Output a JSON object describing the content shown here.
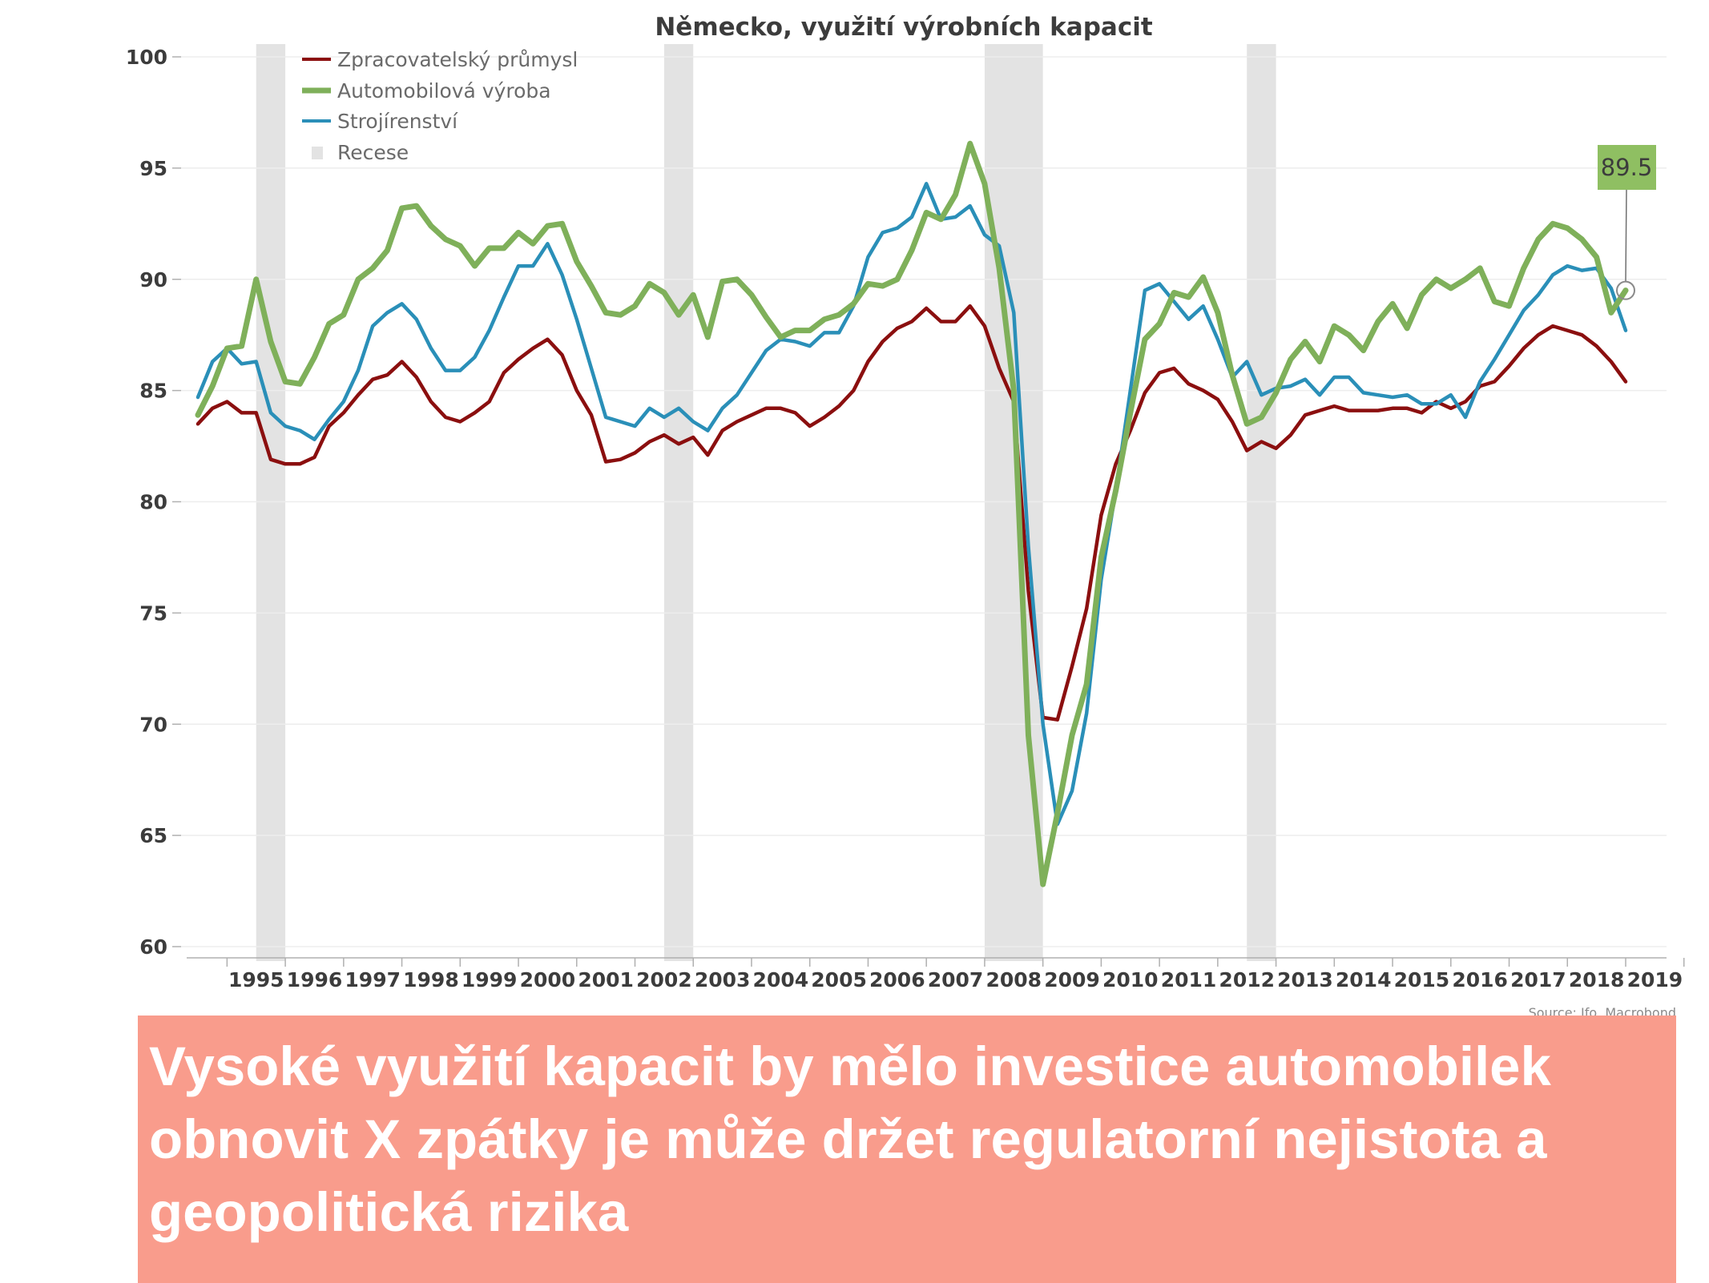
{
  "caption": {
    "text": "Vysoké využití kapacit by mělo investice automobilek obnovit X zpátky je může držet regulatorní nejistota a geopolitická rizika"
  },
  "chart_data": {
    "type": "line",
    "title": "Německo, využití výrobních kapacit",
    "source": "Source: Ifo, Macrobond",
    "x_start_year": 1994.5,
    "x_step": 0.25,
    "xlim": [
      1994.5,
      2019.55
    ],
    "ylim": [
      60,
      100
    ],
    "yticks": [
      60,
      65,
      70,
      75,
      80,
      85,
      90,
      95,
      100
    ],
    "xtick_labels": [
      "1995",
      "1996",
      "1997",
      "1998",
      "1999",
      "2000",
      "2001",
      "2002",
      "2003",
      "2004",
      "2005",
      "2006",
      "2007",
      "2008",
      "2009",
      "2010",
      "2011",
      "2012",
      "2013",
      "2014",
      "2015",
      "2016",
      "2017",
      "2018",
      "2019"
    ],
    "legend_position": "top-left",
    "grid": true,
    "recessions": [
      [
        1995.5,
        1996.0
      ],
      [
        2002.5,
        2003.0
      ],
      [
        2008.0,
        2009.0
      ],
      [
        2012.5,
        2013.0
      ]
    ],
    "series": [
      {
        "name": "Zpracovatelský průmysl",
        "color": "#8b0f0f",
        "values": [
          83.5,
          84.2,
          84.5,
          84.0,
          84.0,
          81.9,
          81.7,
          81.7,
          82.0,
          83.4,
          84.0,
          84.8,
          85.5,
          85.7,
          86.3,
          85.6,
          84.5,
          83.8,
          83.6,
          84.0,
          84.5,
          85.8,
          86.4,
          86.9,
          87.3,
          86.6,
          85.0,
          83.9,
          81.8,
          81.9,
          82.2,
          82.7,
          83.0,
          82.6,
          82.9,
          82.1,
          83.2,
          83.6,
          83.9,
          84.2,
          84.2,
          84.0,
          83.4,
          83.8,
          84.3,
          85.0,
          86.3,
          87.2,
          87.8,
          88.1,
          88.7,
          88.1,
          88.1,
          88.8,
          87.9,
          86.0,
          84.5,
          76.0,
          70.3,
          70.2,
          72.6,
          75.2,
          79.4,
          81.7,
          83.2,
          84.9,
          85.8,
          86.0,
          85.3,
          85.0,
          84.6,
          83.6,
          82.3,
          82.7,
          82.4,
          83.0,
          83.9,
          84.1,
          84.3,
          84.1,
          84.1,
          84.1,
          84.2,
          84.2,
          84.0,
          84.5,
          84.2,
          84.5,
          85.2,
          85.4,
          86.1,
          86.9,
          87.5,
          87.9,
          87.7,
          87.5,
          87.0,
          86.3,
          85.4
        ]
      },
      {
        "name": "Automobilová výroba",
        "color": "#7fb05a",
        "values": [
          83.9,
          85.2,
          86.9,
          87.0,
          90.0,
          87.2,
          85.4,
          85.3,
          86.5,
          88.0,
          88.4,
          90.0,
          90.5,
          91.3,
          93.2,
          93.3,
          92.4,
          91.8,
          91.5,
          90.6,
          91.4,
          91.4,
          92.1,
          91.6,
          92.4,
          92.5,
          90.8,
          89.7,
          88.5,
          88.4,
          88.8,
          89.8,
          89.4,
          88.4,
          89.3,
          87.4,
          89.9,
          90.0,
          89.3,
          88.3,
          87.4,
          87.7,
          87.7,
          88.2,
          88.4,
          88.9,
          89.8,
          89.7,
          90.0,
          91.3,
          93.0,
          92.7,
          93.8,
          96.1,
          94.3,
          90.5,
          85.0,
          69.5,
          62.8,
          66.0,
          69.5,
          71.8,
          77.5,
          80.5,
          84.0,
          87.3,
          88.0,
          89.4,
          89.2,
          90.1,
          88.5,
          85.7,
          83.5,
          83.8,
          84.9,
          86.4,
          87.2,
          86.3,
          87.9,
          87.5,
          86.8,
          88.1,
          88.9,
          87.8,
          89.3,
          90.0,
          89.6,
          90.0,
          90.5,
          89.0,
          88.8,
          90.5,
          91.8,
          92.5,
          92.3,
          91.8,
          91.0,
          88.5,
          89.5
        ]
      },
      {
        "name": "Strojírenství",
        "color": "#2a8fb8",
        "values": [
          84.7,
          86.3,
          86.9,
          86.2,
          86.3,
          84.0,
          83.4,
          83.2,
          82.8,
          83.7,
          84.5,
          85.9,
          87.9,
          88.5,
          88.9,
          88.2,
          86.9,
          85.9,
          85.9,
          86.5,
          87.7,
          89.2,
          90.6,
          90.6,
          91.6,
          90.2,
          88.2,
          86.0,
          83.8,
          83.6,
          83.4,
          84.2,
          83.8,
          84.2,
          83.6,
          83.2,
          84.2,
          84.8,
          85.8,
          86.8,
          87.3,
          87.2,
          87.0,
          87.6,
          87.6,
          88.8,
          91.0,
          92.1,
          92.3,
          92.8,
          94.3,
          92.7,
          92.8,
          93.3,
          92.0,
          91.5,
          88.5,
          78.0,
          70.0,
          65.5,
          67.0,
          70.5,
          76.5,
          80.5,
          85.0,
          89.5,
          89.8,
          89.0,
          88.2,
          88.8,
          87.3,
          85.6,
          86.3,
          84.8,
          85.1,
          85.2,
          85.5,
          84.8,
          85.6,
          85.6,
          84.9,
          84.8,
          84.7,
          84.8,
          84.4,
          84.4,
          84.8,
          83.8,
          85.4,
          86.4,
          87.5,
          88.6,
          89.3,
          90.2,
          90.6,
          90.4,
          90.5,
          89.6,
          87.7
        ]
      }
    ],
    "recession_label": "Recese",
    "callout": {
      "value_label": "89.5",
      "series": "Automobilová výroba"
    }
  }
}
